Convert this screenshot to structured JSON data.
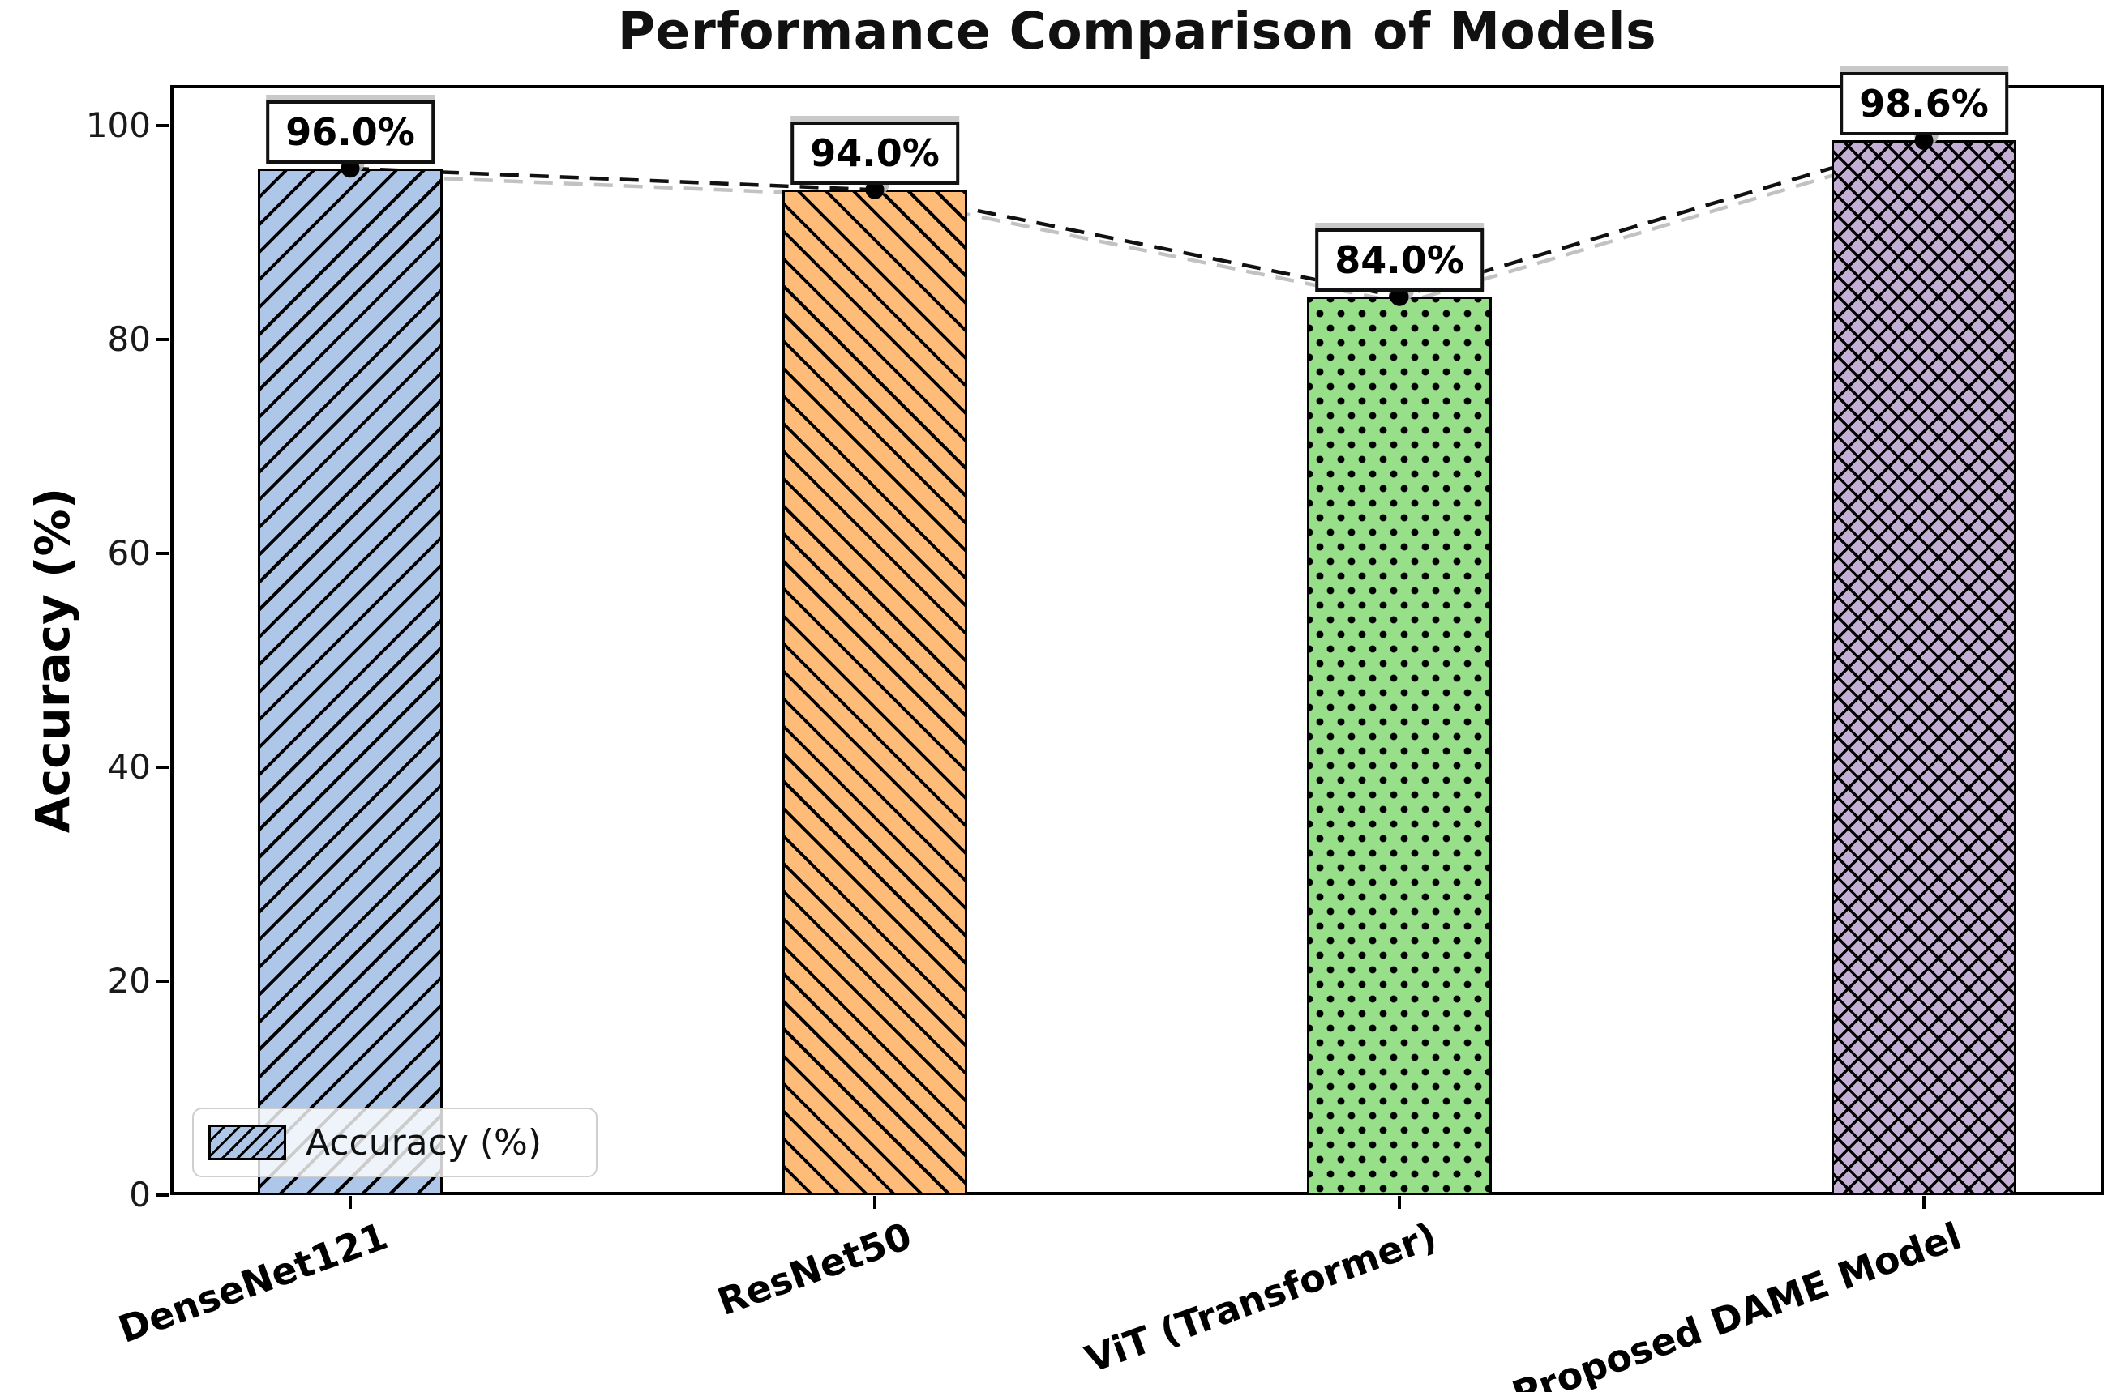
{
  "chart_data": {
    "type": "bar",
    "title": "Performance Comparison of Models",
    "xlabel": "",
    "ylabel": "Accuracy (%)",
    "categories": [
      "DenseNet121",
      "ResNet50",
      "ViT (Transformer)",
      "Proposed DAME Model"
    ],
    "series": [
      {
        "name": "Accuracy (%)",
        "values": [
          96.0,
          94.0,
          84.0,
          98.6
        ]
      }
    ],
    "value_labels": [
      "96.0%",
      "94.0%",
      "84.0%",
      "98.6%"
    ],
    "bar_colors": [
      "#aec7e8",
      "#ffbb78",
      "#98df8a",
      "#c5b0d5"
    ],
    "bar_edge_color": "#000000",
    "hatches": [
      "/",
      "\\",
      ".",
      "x"
    ],
    "yticks": [
      0,
      20,
      40,
      60,
      80,
      100
    ],
    "ylim": [
      0,
      103.8
    ],
    "grid": false,
    "legend": {
      "label": "Accuracy (%)",
      "position": "lower-left"
    },
    "trend_line": {
      "style": "dashed",
      "color": "#111111",
      "marker": "circle",
      "marker_color": "#000000",
      "shadow_color": "#b3b3b3",
      "connects": "bar tops"
    }
  }
}
